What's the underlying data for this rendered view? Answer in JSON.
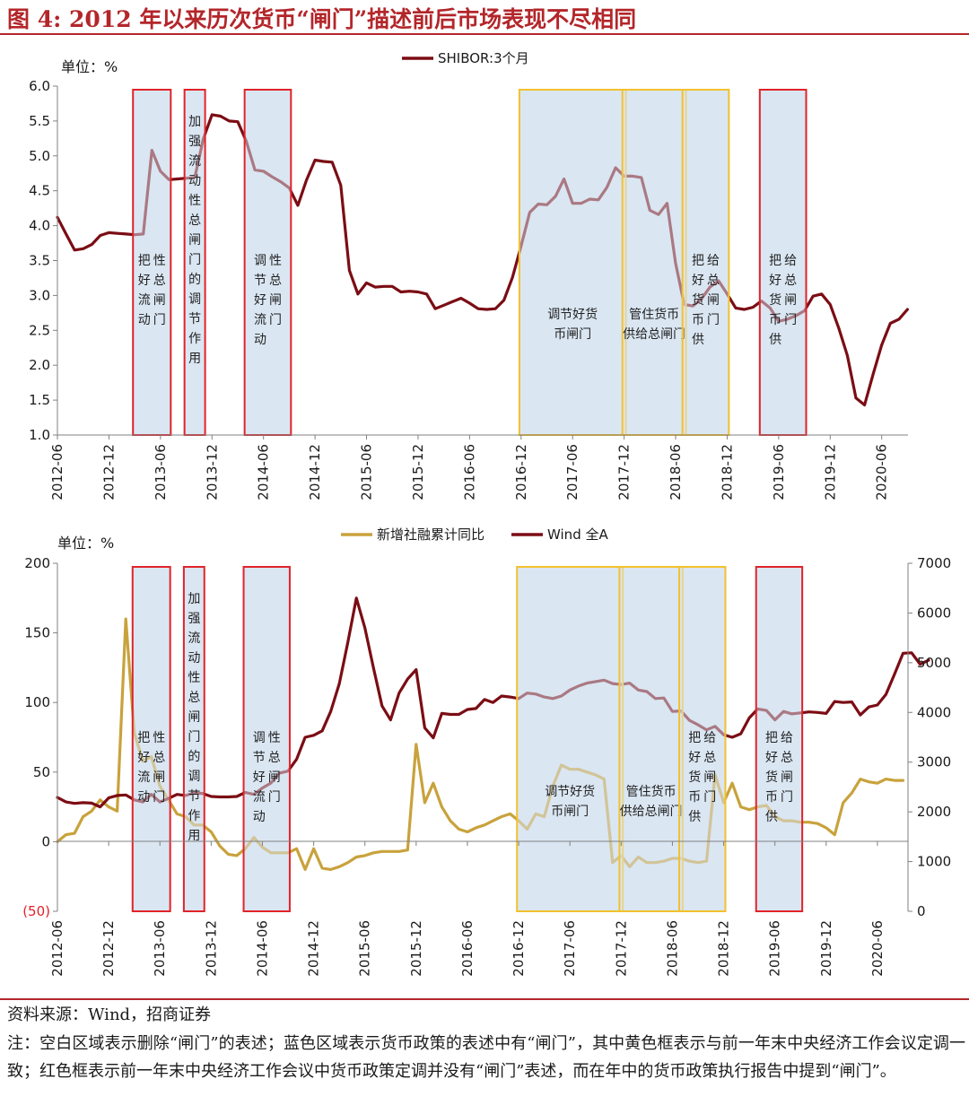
{
  "figure": {
    "title": "图 4:  2012 年以来历次货币“闸门”描述前后市场表现不尽相同",
    "source": "资料来源：Wind，招商证券",
    "note": "注：空白区域表示删除“闸门”的表述；蓝色区域表示货币政策的表述中有“闸门”，其中黄色框表示与前一年末中央经济工作会议定调一致；红色框表示前一年末中央经济工作会议中货币政策定调并没有“闸门”表述，而在年中的货币政策执行报告中提到“闸门”。"
  },
  "x_tick_labels": [
    "2012-06",
    "2012-12",
    "2013-06",
    "2013-12",
    "2014-06",
    "2014-12",
    "2015-06",
    "2015-12",
    "2016-06",
    "2016-12",
    "2017-06",
    "2017-12",
    "2018-06",
    "2018-12",
    "2019-06",
    "2019-12",
    "2020-06"
  ],
  "colors": {
    "dark_red": "#7b0d14",
    "gold": "#c8a23c",
    "box_red": "#e0232a",
    "box_yellow": "#f2c12e",
    "shade_blue": "#dae6f2"
  },
  "chart_data": [
    {
      "type": "line",
      "unit_label": "单位：%",
      "ylim": [
        1.0,
        6.0
      ],
      "y_ticks": [
        "1.0",
        "1.5",
        "2.0",
        "2.5",
        "3.0",
        "3.5",
        "4.0",
        "4.5",
        "5.0",
        "5.5",
        "6.0"
      ],
      "grid": false,
      "legend_position": "top-center",
      "x_start": "2012-06",
      "series": [
        {
          "name": "SHIBOR:3个月",
          "color": "#7b0d14",
          "values": [
            4.12,
            3.88,
            3.65,
            3.67,
            3.73,
            3.86,
            3.9,
            3.89,
            3.88,
            3.87,
            3.88,
            5.08,
            4.78,
            4.66,
            4.67,
            4.68,
            4.69,
            5.25,
            5.59,
            5.57,
            5.5,
            5.49,
            5.21,
            4.8,
            4.78,
            4.7,
            4.63,
            4.54,
            4.29,
            4.65,
            4.94,
            4.92,
            4.91,
            4.58,
            3.36,
            3.02,
            3.18,
            3.12,
            3.13,
            3.13,
            3.05,
            3.06,
            3.05,
            3.02,
            2.81,
            2.86,
            2.91,
            2.96,
            2.89,
            2.81,
            2.8,
            2.81,
            2.93,
            3.26,
            3.71,
            4.19,
            4.31,
            4.3,
            4.42,
            4.67,
            4.32,
            4.32,
            4.38,
            4.37,
            4.55,
            4.83,
            4.71,
            4.71,
            4.69,
            4.22,
            4.16,
            4.32,
            3.46,
            2.87,
            2.85,
            2.95,
            3.12,
            3.21,
            3.02,
            2.82,
            2.8,
            2.83,
            2.92,
            2.82,
            2.63,
            2.66,
            2.71,
            2.78,
            2.99,
            3.02,
            2.87,
            2.53,
            2.14,
            1.53,
            1.43,
            1.87,
            2.29,
            2.6,
            2.66,
            2.8
          ]
        }
      ],
      "annotation_boxes": [
        {
          "text": "把好流动性总闸门",
          "style": "red",
          "from": "2013-03",
          "to": "2013-07"
        },
        {
          "text": "加强流动性总闸门的调节作用",
          "style": "red",
          "from": "2013-09",
          "to": "2013-11"
        },
        {
          "text": "调节好流动性总闸门",
          "style": "red",
          "from": "2014-04",
          "to": "2014-09"
        },
        {
          "text": "调节好货币闸门",
          "style": "yellow",
          "from": "2016-12",
          "to": "2017-12"
        },
        {
          "text": "管住货币供给总闸门",
          "style": "yellow",
          "from": "2017-12",
          "to": "2018-07"
        },
        {
          "text": "把好货币供给总闸门",
          "style": "yellow",
          "from": "2018-07",
          "to": "2018-12"
        },
        {
          "text": "把好货币供给总闸门",
          "style": "red",
          "from": "2019-04",
          "to": "2019-09"
        }
      ]
    },
    {
      "type": "line",
      "unit_label": "单位：%",
      "ylim": [
        -50,
        200
      ],
      "y_ticks": [
        "(50)",
        "0",
        "50",
        "100",
        "150",
        "200"
      ],
      "y2lim": [
        0,
        7000
      ],
      "y2_ticks": [
        "0",
        "1000",
        "2000",
        "3000",
        "4000",
        "5000",
        "6000",
        "7000"
      ],
      "grid": false,
      "legend_position": "top-center",
      "x_start": "2012-06",
      "series": [
        {
          "name": "新增社融累计同比",
          "color": "#c8a23c",
          "axis": "left",
          "values": [
            0,
            5,
            6,
            18,
            22,
            30,
            25,
            22,
            160,
            78,
            58,
            61,
            40,
            30,
            20,
            18,
            12,
            12,
            7,
            -3,
            -9,
            -10,
            -5,
            3,
            -4,
            -8,
            -8,
            -8,
            -5,
            -20,
            -5,
            -19,
            -20,
            -18,
            -15,
            -11,
            -10,
            -8,
            -7,
            -7,
            -7,
            -6,
            70,
            28,
            42,
            25,
            15,
            9,
            7,
            10,
            12,
            15,
            18,
            20,
            15,
            9,
            20,
            18,
            40,
            55,
            52,
            52,
            50,
            48,
            45,
            -15,
            -10,
            -18,
            -11,
            -15,
            -15,
            -14,
            -12,
            -12,
            -14,
            -15,
            -14,
            48,
            28,
            42,
            25,
            23,
            25,
            26,
            18,
            15,
            15,
            14,
            14,
            13,
            10,
            5,
            28,
            35,
            45,
            43,
            42,
            45,
            44,
            44
          ]
        },
        {
          "name": "Wind 全A",
          "color": "#7b0d14",
          "axis": "right",
          "values": [
            2290,
            2200,
            2170,
            2185,
            2175,
            2100,
            2280,
            2330,
            2340,
            2240,
            2200,
            2350,
            2200,
            2270,
            2350,
            2330,
            2380,
            2370,
            2310,
            2300,
            2300,
            2310,
            2390,
            2350,
            2480,
            2580,
            2780,
            2820,
            3060,
            3500,
            3540,
            3630,
            4020,
            4580,
            5410,
            6300,
            5700,
            4900,
            4130,
            3850,
            4390,
            4670,
            4860,
            3690,
            3490,
            3980,
            3960,
            3960,
            4060,
            4080,
            4260,
            4200,
            4330,
            4310,
            4280,
            4390,
            4370,
            4310,
            4280,
            4330,
            4450,
            4530,
            4590,
            4620,
            4650,
            4580,
            4560,
            4590,
            4450,
            4420,
            4280,
            4290,
            4020,
            4030,
            3840,
            3750,
            3650,
            3720,
            3550,
            3500,
            3570,
            3890,
            4070,
            4040,
            3850,
            4020,
            3970,
            3990,
            4010,
            4000,
            3980,
            4220,
            4200,
            4210,
            3950,
            4110,
            4150,
            4360,
            4770,
            5190,
            5200,
            4970,
            5050
          ]
        }
      ],
      "annotation_boxes": [
        {
          "text": "把好流动性总闸门",
          "style": "red",
          "from": "2013-03",
          "to": "2013-07"
        },
        {
          "text": "加强流动性总闸门的调节作用",
          "style": "red",
          "from": "2013-09",
          "to": "2013-11"
        },
        {
          "text": "调节好流动性总闸门",
          "style": "red",
          "from": "2014-04",
          "to": "2014-09"
        },
        {
          "text": "调节好货币闸门",
          "style": "yellow",
          "from": "2016-12",
          "to": "2017-12"
        },
        {
          "text": "管住货币供给总闸门",
          "style": "yellow",
          "from": "2017-12",
          "to": "2018-07"
        },
        {
          "text": "把好货币供给总闸门",
          "style": "yellow",
          "from": "2018-07",
          "to": "2018-12"
        },
        {
          "text": "把好货币供给总闸门",
          "style": "red",
          "from": "2019-04",
          "to": "2019-09"
        }
      ]
    }
  ]
}
